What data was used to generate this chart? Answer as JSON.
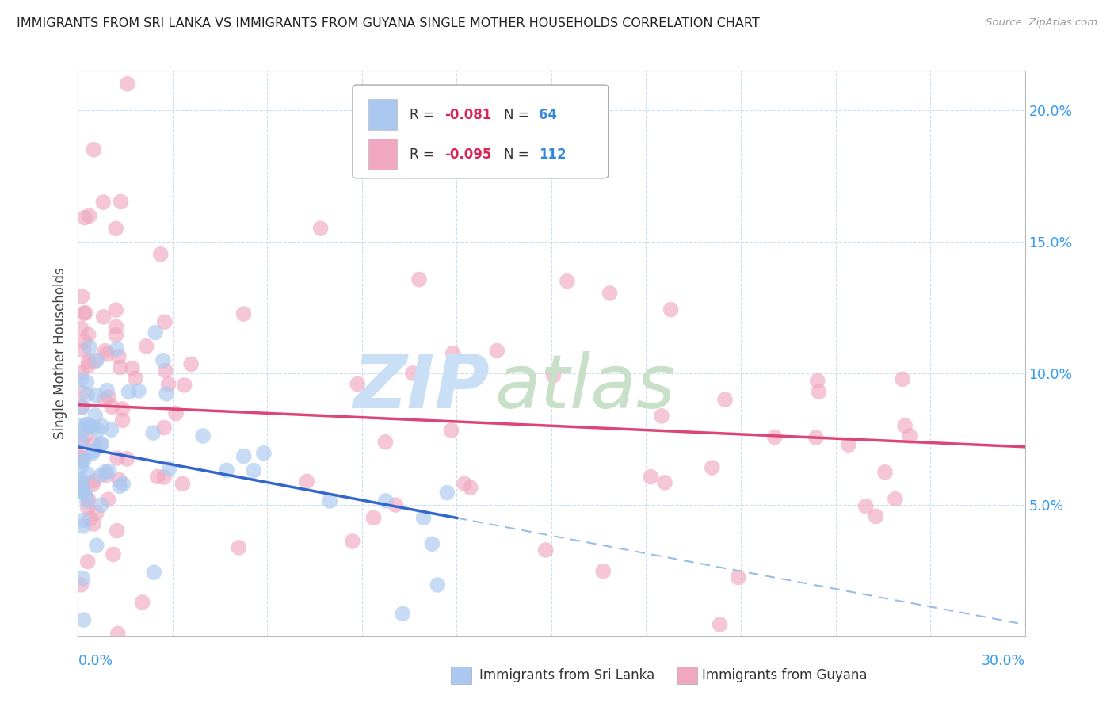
{
  "title": "IMMIGRANTS FROM SRI LANKA VS IMMIGRANTS FROM GUYANA SINGLE MOTHER HOUSEHOLDS CORRELATION CHART",
  "source": "Source: ZipAtlas.com",
  "ylabel": "Single Mother Households",
  "sri_lanka_R": -0.081,
  "sri_lanka_N": 64,
  "guyana_R": -0.095,
  "guyana_N": 112,
  "sri_lanka_color": "#aac8f0",
  "guyana_color": "#f0a8c0",
  "sri_lanka_line_color": "#3366cc",
  "guyana_line_color": "#dd4477",
  "dashed_line_color": "#99bce8",
  "background_color": "#ffffff",
  "grid_color": "#ccddee",
  "xlim": [
    0.0,
    0.3
  ],
  "ylim": [
    0.0,
    0.215
  ],
  "right_ytick_labels": [
    "5.0%",
    "10.0%",
    "15.0%",
    "20.0%"
  ],
  "right_ytick_vals": [
    0.05,
    0.1,
    0.15,
    0.2
  ],
  "watermark_zip_color": "#c8dff5",
  "watermark_atlas_color": "#c8dfc8"
}
